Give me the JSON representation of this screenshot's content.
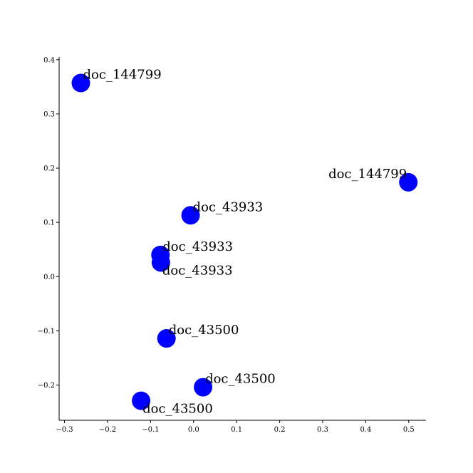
{
  "chart_data": {
    "type": "scatter",
    "title": "",
    "xlabel": "",
    "ylabel": "",
    "xlim": [
      -0.3125,
      0.54
    ],
    "ylim": [
      -0.265,
      0.405
    ],
    "grid": false,
    "point_color": "#0000ff",
    "x_ticks": [
      {
        "value": -0.3,
        "label": "−0.3"
      },
      {
        "value": -0.2,
        "label": "−0.2"
      },
      {
        "value": -0.1,
        "label": "−0.1"
      },
      {
        "value": 0.0,
        "label": "0.0"
      },
      {
        "value": 0.1,
        "label": "0.1"
      },
      {
        "value": 0.2,
        "label": "0.2"
      },
      {
        "value": 0.3,
        "label": "0.3"
      },
      {
        "value": 0.4,
        "label": "0.4"
      },
      {
        "value": 0.5,
        "label": "0.5"
      }
    ],
    "y_ticks": [
      {
        "value": -0.2,
        "label": "−0.2"
      },
      {
        "value": -0.1,
        "label": "−0.1"
      },
      {
        "value": 0.0,
        "label": "0.0"
      },
      {
        "value": 0.1,
        "label": "0.1"
      },
      {
        "value": 0.2,
        "label": "0.2"
      },
      {
        "value": 0.3,
        "label": "0.3"
      },
      {
        "value": 0.4,
        "label": "0.4"
      }
    ],
    "points": [
      {
        "x": -0.262,
        "y": 0.357,
        "label": "doc_144799",
        "label_pos": "above-right"
      },
      {
        "x": 0.499,
        "y": 0.174,
        "label": "doc_144799",
        "label_pos": "above-left"
      },
      {
        "x": -0.007,
        "y": 0.113,
        "label": "doc_43933",
        "label_pos": "above-right"
      },
      {
        "x": -0.077,
        "y": 0.04,
        "label": "doc_43933",
        "label_pos": "above-right"
      },
      {
        "x": -0.076,
        "y": 0.026,
        "label": "doc_43933",
        "label_pos": "below-right"
      },
      {
        "x": -0.063,
        "y": -0.114,
        "label": "doc_43500",
        "label_pos": "above-right"
      },
      {
        "x": 0.022,
        "y": -0.204,
        "label": "doc_43500",
        "label_pos": "above-right"
      },
      {
        "x": -0.122,
        "y": -0.229,
        "label": "doc_43500",
        "label_pos": "below-right"
      }
    ]
  }
}
